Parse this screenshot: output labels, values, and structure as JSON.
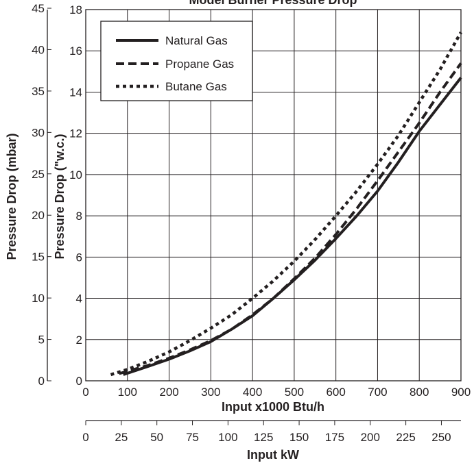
{
  "chart_data": {
    "type": "line",
    "title": "Model Burner Pressure Drop",
    "xlabel": "Input x1000 Btu/h",
    "xlabel_secondary": "Input kW",
    "ylabel": "Pressure Drop (\"w.c.)",
    "ylabel_secondary": "Pressure Drop (mbar)",
    "xlim": [
      0,
      900
    ],
    "ylim": [
      0,
      18
    ],
    "x_ticks": [
      0,
      100,
      200,
      300,
      400,
      500,
      600,
      700,
      800,
      900
    ],
    "y_ticks": [
      0,
      2,
      4,
      6,
      8,
      10,
      12,
      14,
      16,
      18
    ],
    "x2_ticks": [
      0,
      25,
      50,
      75,
      100,
      125,
      150,
      175,
      200,
      225,
      250
    ],
    "y2_ticks": [
      0,
      5,
      10,
      15,
      20,
      25,
      30,
      35,
      40,
      45
    ],
    "grid": true,
    "legend_position": "top-left",
    "series": [
      {
        "name": "Natural Gas",
        "style": "solid",
        "x": [
          90,
          150,
          200,
          250,
          300,
          350,
          400,
          450,
          500,
          550,
          600,
          650,
          700,
          750,
          800,
          850,
          900
        ],
        "y": [
          0.3,
          0.7,
          1.05,
          1.45,
          1.9,
          2.5,
          3.15,
          4.0,
          4.9,
          5.85,
          6.9,
          8.0,
          9.2,
          10.6,
          12.1,
          13.4,
          14.7
        ]
      },
      {
        "name": "Propane Gas",
        "style": "dashed",
        "x": [
          80,
          150,
          200,
          250,
          300,
          350,
          400,
          450,
          500,
          550,
          600,
          650,
          700,
          750,
          800,
          850,
          900
        ],
        "y": [
          0.35,
          0.75,
          1.1,
          1.5,
          1.95,
          2.5,
          3.2,
          4.0,
          4.95,
          5.95,
          7.1,
          8.35,
          9.7,
          11.1,
          12.5,
          14.0,
          15.4
        ]
      },
      {
        "name": "Butane Gas",
        "style": "dotted",
        "x": [
          60,
          100,
          150,
          200,
          250,
          300,
          350,
          400,
          450,
          500,
          550,
          600,
          650,
          700,
          750,
          800,
          850,
          900
        ],
        "y": [
          0.3,
          0.55,
          0.95,
          1.4,
          1.95,
          2.55,
          3.2,
          4.0,
          4.85,
          5.8,
          6.85,
          8.0,
          9.2,
          10.5,
          11.9,
          13.5,
          15.1,
          16.9
        ]
      }
    ]
  }
}
